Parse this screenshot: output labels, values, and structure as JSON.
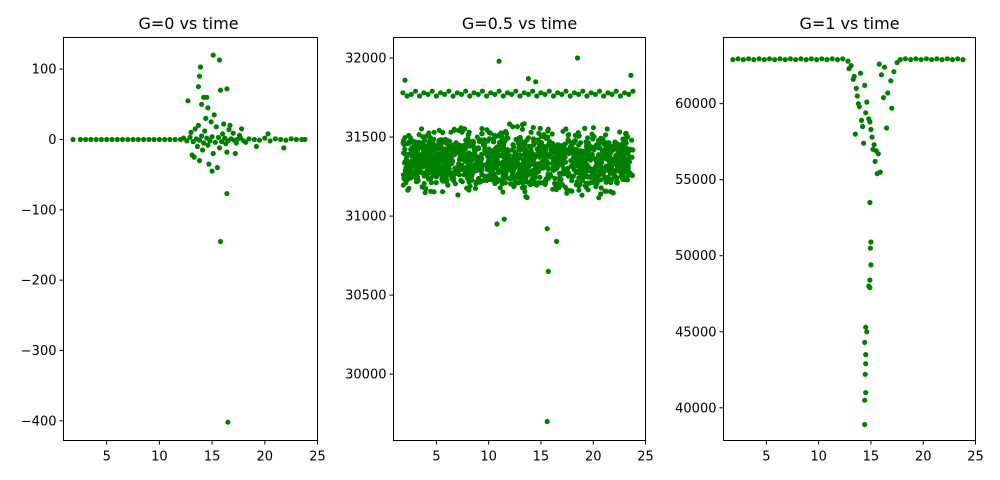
{
  "chart_data": [
    {
      "type": "scatter",
      "title": "G=0 vs time",
      "xlabel": "",
      "ylabel": "",
      "xlim": [
        0.9,
        25.0
      ],
      "ylim": [
        -428,
        145
      ],
      "xticks": [
        5,
        10,
        15,
        20,
        25
      ],
      "yticks": [
        100,
        0,
        -100,
        -200,
        -300,
        -400
      ],
      "ytick_labels": [
        "100",
        "0",
        "−100",
        "−200",
        "−300",
        "−400"
      ],
      "marker_color": "#008000",
      "grid": false,
      "series": [
        {
          "x": [
            1.8,
            2.5,
            3.0,
            3.5,
            4.0,
            4.5,
            5.0,
            5.5,
            6.0,
            6.5,
            7.0,
            7.5,
            8.0,
            8.5,
            9.0,
            9.5,
            10.0,
            10.5,
            11.0,
            11.5,
            12.0,
            12.3,
            12.6,
            12.9,
            13.2,
            13.5,
            13.8,
            14.0,
            14.2,
            14.5,
            14.8,
            15.0,
            15.3,
            15.6,
            15.9,
            16.2,
            16.5,
            16.8,
            17.1,
            17.4,
            17.7,
            18.0,
            18.5,
            19.0,
            19.5,
            20.0,
            20.5,
            21.0,
            21.5,
            22.0,
            22.5,
            23.0,
            23.5,
            23.8,
            13.0,
            13.4,
            13.6,
            13.7,
            14.1,
            14.3,
            14.6,
            14.9,
            15.1,
            15.4,
            15.7,
            16.0,
            16.3,
            16.6,
            17.0,
            17.3,
            17.6,
            18.2,
            13.3,
            13.8,
            14.4,
            14.7,
            15.2,
            15.5,
            16.1,
            16.4,
            12.7,
            13.1,
            14.0,
            14.5,
            15.0,
            15.8,
            16.7,
            17.2,
            17.8,
            19.2,
            20.3,
            21.8,
            13.7,
            13.8,
            13.9,
            14.2,
            14.6,
            15.1,
            15.7,
            16.4,
            15.8,
            16.4
          ],
          "y": [
            0,
            0,
            0,
            0,
            0,
            0,
            0,
            0,
            0,
            0,
            0,
            0,
            0,
            0,
            0,
            0,
            0,
            0,
            0,
            0,
            0,
            2,
            -2,
            3,
            -3,
            1,
            -1,
            5,
            -5,
            2,
            -2,
            4,
            -4,
            3,
            -3,
            2,
            -2,
            1,
            -1,
            0,
            2,
            -2,
            1,
            0,
            -1,
            2,
            -2,
            1,
            0,
            -1,
            1,
            0,
            0,
            0,
            10,
            15,
            -10,
            20,
            -15,
            12,
            -8,
            25,
            -20,
            18,
            -12,
            8,
            -6,
            14,
            9,
            -5,
            6,
            -4,
            -25,
            -30,
            30,
            -35,
            35,
            -40,
            22,
            -18,
            55,
            -22,
            50,
            60,
            -45,
            70,
            20,
            -20,
            15,
            -10,
            8,
            -12,
            75,
            90,
            103,
            60,
            45,
            120,
            113,
            72,
            -145,
            -77
          ]
        }
      ],
      "outliers": [
        {
          "x": 16.5,
          "y": -402
        }
      ]
    },
    {
      "type": "scatter",
      "title": "G=0.5 vs time",
      "xlabel": "",
      "ylabel": "",
      "xlim": [
        0.9,
        25.0
      ],
      "ylim": [
        29580,
        32130
      ],
      "xticks": [
        5,
        10,
        15,
        20,
        25
      ],
      "yticks": [
        32000,
        31500,
        31000,
        30500,
        30000
      ],
      "ytick_labels": [
        "32000",
        "31500",
        "31000",
        "30500",
        "30000"
      ],
      "marker_color": "#008000",
      "grid": false,
      "series": [
        {
          "x": [
            1.8,
            2.2,
            2.6,
            3.0,
            3.4,
            3.8,
            4.2,
            4.6,
            5.0,
            5.4,
            5.8,
            6.2,
            6.6,
            7.0,
            7.4,
            7.8,
            8.2,
            8.6,
            9.0,
            9.4,
            9.8,
            10.2,
            10.6,
            11.0,
            11.4,
            11.8,
            12.2,
            12.6,
            13.0,
            13.4,
            13.8,
            14.2,
            14.6,
            15.0,
            15.4,
            15.8,
            16.2,
            16.6,
            17.0,
            17.4,
            17.8,
            18.2,
            18.6,
            19.0,
            19.4,
            19.8,
            20.2,
            20.6,
            21.0,
            21.4,
            21.8,
            22.2,
            22.6,
            23.0,
            23.4,
            23.8
          ],
          "y": [
            31780,
            31760,
            31770,
            31790,
            31760,
            31780,
            31770,
            31790,
            31760,
            31780,
            31770,
            31790,
            31760,
            31780,
            31770,
            31790,
            31760,
            31780,
            31770,
            31790,
            31760,
            31780,
            31770,
            31790,
            31760,
            31780,
            31770,
            31790,
            31760,
            31780,
            31770,
            31790,
            31760,
            31780,
            31770,
            31790,
            31760,
            31780,
            31770,
            31790,
            31760,
            31780,
            31770,
            31790,
            31760,
            31780,
            31770,
            31790,
            31760,
            31780,
            31770,
            31790,
            31760,
            31780,
            31770,
            31790
          ]
        }
      ],
      "band": {
        "x_from": 1.8,
        "x_to": 23.8,
        "y_low": 31080,
        "y_high": 31620
      },
      "outliers": [
        {
          "x": 2.0,
          "y": 31860
        },
        {
          "x": 11.0,
          "y": 31980
        },
        {
          "x": 18.5,
          "y": 32000
        },
        {
          "x": 10.8,
          "y": 30950
        },
        {
          "x": 11.5,
          "y": 30980
        },
        {
          "x": 15.6,
          "y": 30920
        },
        {
          "x": 16.5,
          "y": 30840
        },
        {
          "x": 15.7,
          "y": 30650
        },
        {
          "x": 15.6,
          "y": 29700
        },
        {
          "x": 13.8,
          "y": 31870
        },
        {
          "x": 14.5,
          "y": 31850
        },
        {
          "x": 23.6,
          "y": 31890
        }
      ]
    },
    {
      "type": "scatter",
      "title": "G=1 vs time",
      "xlabel": "",
      "ylabel": "",
      "xlim": [
        0.9,
        25.0
      ],
      "ylim": [
        37850,
        64350
      ],
      "xticks": [
        5,
        10,
        15,
        20,
        25
      ],
      "yticks": [
        60000,
        55000,
        50000,
        45000,
        40000
      ],
      "ytick_labels": [
        "60000",
        "55000",
        "50000",
        "45000",
        "40000"
      ],
      "marker_color": "#008000",
      "grid": false,
      "series": [
        {
          "x": [
            1.8,
            2.3,
            2.8,
            3.3,
            3.8,
            4.3,
            4.8,
            5.3,
            5.8,
            6.3,
            6.8,
            7.3,
            7.8,
            8.3,
            8.8,
            9.3,
            9.8,
            10.3,
            10.8,
            11.3,
            11.8,
            12.3,
            17.8,
            18.3,
            18.8,
            19.3,
            19.8,
            20.3,
            20.8,
            21.3,
            21.8,
            22.3,
            22.8,
            23.3,
            23.8
          ],
          "y": [
            62900,
            62950,
            62900,
            62950,
            62900,
            62950,
            62900,
            62950,
            62900,
            62950,
            62900,
            62950,
            62900,
            62950,
            62900,
            62950,
            62900,
            62950,
            62900,
            62950,
            62900,
            62950,
            62900,
            62950,
            62900,
            62950,
            62900,
            62950,
            62900,
            62950,
            62900,
            62950,
            62900,
            62950,
            62900
          ]
        },
        {
          "x": [
            12.8,
            13.1,
            13.4,
            13.7,
            13.9,
            14.1,
            14.3,
            14.6,
            14.8,
            15.0,
            15.2,
            15.4,
            15.6,
            15.8,
            16.0,
            16.3,
            16.6,
            16.9,
            17.2,
            17.5,
            12.9,
            13.3,
            13.6,
            13.8,
            14.2,
            14.5,
            15.1,
            15.5,
            15.9,
            16.5,
            17.0,
            13.5,
            14.0,
            14.4,
            14.9,
            15.3,
            15.7,
            16.2
          ],
          "y": [
            62800,
            62500,
            61800,
            60500,
            59800,
            58900,
            57400,
            60100,
            59000,
            58300,
            57000,
            56200,
            55400,
            62600,
            61900,
            62400,
            60700,
            61500,
            62100,
            62700,
            62300,
            61600,
            61000,
            60000,
            58500,
            59400,
            57800,
            56900,
            55500,
            58400,
            59700,
            58000,
            62000,
            61200,
            58800,
            57300,
            56700,
            60400
          ]
        },
        {
          "x": [
            14.9,
            15.0,
            14.95,
            15.0,
            14.9,
            14.8,
            14.9,
            14.5,
            14.6,
            14.4,
            14.5,
            14.5,
            14.45,
            14.5,
            14.4
          ],
          "y": [
            53500,
            50900,
            50500,
            49400,
            48400,
            48000,
            47900,
            45300,
            45000,
            44300,
            43500,
            42900,
            42200,
            41000,
            40500
          ]
        }
      ],
      "outliers": [
        {
          "x": 14.4,
          "y": 38900
        }
      ]
    }
  ]
}
